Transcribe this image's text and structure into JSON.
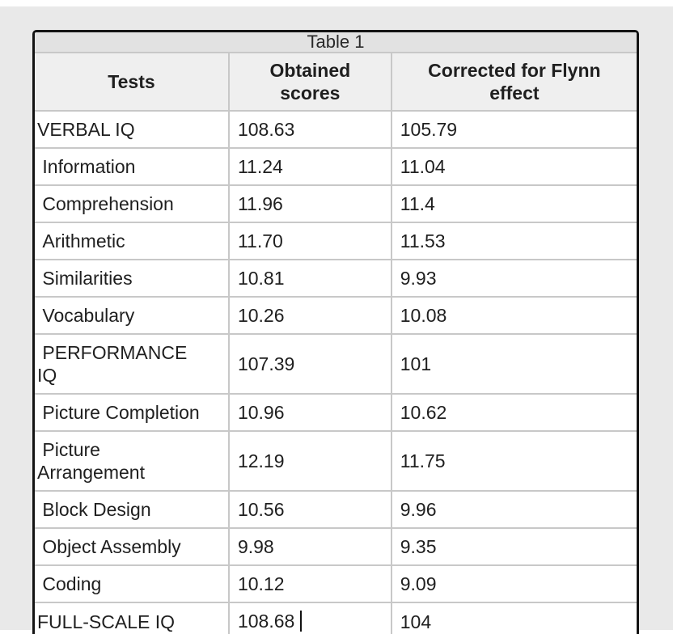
{
  "page": {
    "background_color": "#e9e9e9",
    "frame_border_color": "#141414",
    "grid_color": "#c8c8c8",
    "caption_bg": "#e2e2e2",
    "header_bg": "#efefef",
    "text_color": "#1f1f1f"
  },
  "table": {
    "caption": "Table 1",
    "columns": {
      "tests": "Tests",
      "obtained": "Obtained\nscores",
      "corrected": "Corrected for Flynn\neffect"
    },
    "rows": [
      {
        "label": "VERBAL IQ",
        "obtained": "108.63",
        "corrected": "105.79"
      },
      {
        "label": " Information",
        "obtained": "11.24",
        "corrected": "11.04"
      },
      {
        "label": " Comprehension",
        "obtained": "11.96",
        "corrected": "11.4"
      },
      {
        "label": " Arithmetic",
        "obtained": "11.70",
        "corrected": "11.53"
      },
      {
        "label": " Similarities",
        "obtained": "10.81",
        "corrected": "9.93"
      },
      {
        "label": " Vocabulary",
        "obtained": "10.26",
        "corrected": "10.08"
      },
      {
        "label": " PERFORMANCE\nIQ",
        "obtained": "107.39",
        "corrected": "101"
      },
      {
        "label": " Picture Completion",
        "obtained": "10.96",
        "corrected": "10.62"
      },
      {
        "label": " Picture\nArrangement",
        "obtained": "12.19",
        "corrected": "11.75"
      },
      {
        "label": " Block Design",
        "obtained": "10.56",
        "corrected": "9.96"
      },
      {
        "label": " Object Assembly",
        "obtained": "9.98",
        "corrected": "9.35"
      },
      {
        "label": " Coding",
        "obtained": "10.12",
        "corrected": "9.09"
      },
      {
        "label": "FULL-SCALE IQ",
        "obtained": "108.68 ",
        "corrected": "104"
      }
    ],
    "editing": {
      "caret_visible": true,
      "caret_location": "obtained-score cell of FULL-SCALE IQ row, after text"
    }
  },
  "chart_data": {
    "type": "table",
    "title": "Table 1",
    "categories": [
      "VERBAL IQ",
      "Information",
      "Comprehension",
      "Arithmetic",
      "Similarities",
      "Vocabulary",
      "PERFORMANCE IQ",
      "Picture Completion",
      "Picture Arrangement",
      "Block Design",
      "Object Assembly",
      "Coding",
      "FULL-SCALE IQ"
    ],
    "series": [
      {
        "name": "Obtained scores",
        "values": [
          108.63,
          11.24,
          11.96,
          11.7,
          10.81,
          10.26,
          107.39,
          10.96,
          12.19,
          10.56,
          9.98,
          10.12,
          108.68
        ]
      },
      {
        "name": "Corrected for Flynn effect",
        "values": [
          105.79,
          11.04,
          11.4,
          11.53,
          9.93,
          10.08,
          101,
          10.62,
          11.75,
          9.96,
          9.35,
          9.09,
          104
        ]
      }
    ]
  }
}
